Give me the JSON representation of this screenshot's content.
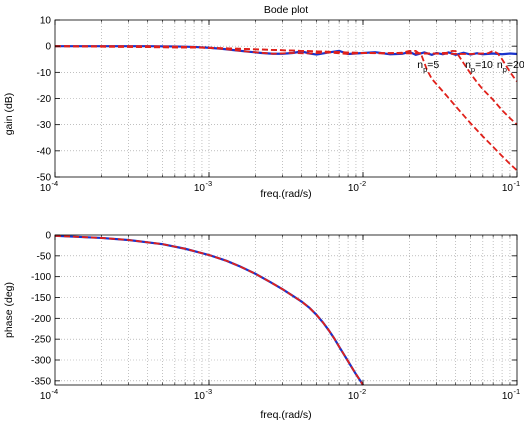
{
  "chart_data": [
    {
      "type": "line",
      "title": "Bode plot",
      "xlabel": "freq.(rad/s)",
      "ylabel": "gain (dB)",
      "xscale": "log",
      "xlim": [
        0.0001,
        0.1
      ],
      "ylim": [
        -50,
        10
      ],
      "grid": "dotted",
      "x_tick_labels": [
        "10",
        "10",
        "10",
        "10"
      ],
      "x_tick_exponents": [
        "-4",
        "-3",
        "-2",
        "-1"
      ],
      "y_ticks": [
        10,
        0,
        -10,
        -20,
        -30,
        -40,
        -50
      ],
      "y_tick_labels": [
        "10",
        "0",
        "-10",
        "-20",
        "-30",
        "-40",
        "-50"
      ],
      "series": [
        {
          "style": "solid",
          "color": "#1a33cc",
          "x": [
            0.0001,
            0.0002,
            0.0004,
            0.0006,
            0.0008,
            0.001,
            0.0012,
            0.0015,
            0.0018,
            0.0022,
            0.0026,
            0.003,
            0.0035,
            0.004,
            0.0045,
            0.005,
            0.006,
            0.007,
            0.008,
            0.01,
            0.012,
            0.015,
            0.018,
            0.02,
            0.022,
            0.025,
            0.028,
            0.03,
            0.033,
            0.036,
            0.04,
            0.045,
            0.05,
            0.055,
            0.06,
            0.07,
            0.08,
            0.09,
            0.1
          ],
          "y": [
            0,
            0,
            0,
            -0.1,
            -0.3,
            -0.6,
            -1.0,
            -1.6,
            -2.1,
            -2.6,
            -2.9,
            -2.9,
            -2.6,
            -2.0,
            -2.8,
            -3.2,
            -2.4,
            -1.8,
            -3.0,
            -2.6,
            -2.3,
            -3.1,
            -2.9,
            -2.2,
            -3.3,
            -2.4,
            -3.3,
            -2.6,
            -3.1,
            -2.4,
            -3.3,
            -2.5,
            -3.2,
            -2.7,
            -3.1,
            -2.8,
            -3.1,
            -2.8,
            -3.0
          ]
        },
        {
          "name": "n_p=5",
          "style": "dashed",
          "color": "#e0201a",
          "x": [
            0.0001,
            0.0004,
            0.0008,
            0.0012,
            0.0018,
            0.0026,
            0.0035,
            0.0045,
            0.006,
            0.008,
            0.01,
            0.014,
            0.018,
            0.02,
            0.022,
            0.024,
            0.026,
            0.028,
            0.03,
            0.035,
            0.04,
            0.05,
            0.06,
            0.07,
            0.08,
            0.09,
            0.1
          ],
          "y": [
            0,
            0,
            -0.3,
            -1.0,
            -2.1,
            -2.9,
            -2.6,
            -2.8,
            -2.4,
            -3.0,
            -2.6,
            -2.8,
            -2.5,
            -1.8,
            -1.8,
            -3.5,
            -9.0,
            -12.5,
            -14.5,
            -19.0,
            -23.0,
            -29.5,
            -34.5,
            -38.5,
            -42.0,
            -45.0,
            -47.5
          ]
        },
        {
          "name": "n_p=10",
          "style": "dashed",
          "color": "#e0201a",
          "x": [
            0.0001,
            0.001,
            0.01,
            0.02,
            0.03,
            0.035,
            0.038,
            0.04,
            0.042,
            0.045,
            0.05,
            0.055,
            0.06,
            0.07,
            0.08,
            0.09,
            0.1
          ],
          "y": [
            0,
            -0.6,
            -2.6,
            -2.6,
            -2.8,
            -2.5,
            -1.8,
            -1.9,
            -3.8,
            -6.5,
            -10.5,
            -13.8,
            -16.5,
            -20.5,
            -24.5,
            -27.5,
            -30.0
          ]
        },
        {
          "name": "n_p=20",
          "style": "dashed",
          "color": "#e0201a",
          "x": [
            0.0001,
            0.001,
            0.01,
            0.05,
            0.065,
            0.07,
            0.075,
            0.08,
            0.085,
            0.09,
            0.095,
            0.1
          ],
          "y": [
            0,
            -0.6,
            -2.6,
            -3.0,
            -2.7,
            -1.8,
            -2.8,
            -5.0,
            -7.5,
            -9.8,
            -11.8,
            -13.5
          ]
        }
      ],
      "annotations": [
        {
          "text": "n",
          "sub": "p",
          "rest": "=5",
          "x": 0.0225,
          "y": -8.3
        },
        {
          "text": "n",
          "sub": "p",
          "rest": "=10",
          "x": 0.046,
          "y": -8.3
        },
        {
          "text": "n",
          "sub": "p",
          "rest": "=20",
          "x": 0.074,
          "y": -8.3
        }
      ]
    },
    {
      "type": "line",
      "xlabel": "freq.(rad/s)",
      "ylabel": "phase (deg)",
      "xscale": "log",
      "xlim": [
        0.0001,
        0.1
      ],
      "ylim": [
        -360,
        0
      ],
      "grid": "dotted",
      "x_tick_labels": [
        "10",
        "10",
        "10",
        "10"
      ],
      "x_tick_exponents": [
        "-4",
        "-3",
        "-2",
        "-1"
      ],
      "y_ticks": [
        0,
        -50,
        -100,
        -150,
        -200,
        -250,
        -300,
        -350
      ],
      "y_tick_labels": [
        "0",
        "-50",
        "-100",
        "-150",
        "-200",
        "-250",
        "-300",
        "-350"
      ],
      "series": [
        {
          "style": "solid",
          "color": "#1a33cc",
          "x": [
            0.0001,
            0.0002,
            0.0003,
            0.0005,
            0.0007,
            0.001,
            0.0013,
            0.0016,
            0.002,
            0.0025,
            0.003,
            0.0035,
            0.004,
            0.0045,
            0.005,
            0.0055,
            0.006,
            0.0065,
            0.007,
            0.0075,
            0.008,
            0.0085,
            0.009,
            0.0095,
            0.01
          ],
          "y": [
            -2,
            -7,
            -12,
            -22,
            -33,
            -48,
            -62,
            -76,
            -93,
            -113,
            -130,
            -146,
            -160,
            -175,
            -192,
            -210,
            -229,
            -248,
            -268,
            -286,
            -303,
            -319,
            -334,
            -347,
            -360
          ]
        },
        {
          "style": "dashed",
          "color": "#e0201a",
          "x": [
            0.0001,
            0.0002,
            0.0003,
            0.0005,
            0.0007,
            0.001,
            0.0013,
            0.0016,
            0.002,
            0.0025,
            0.003,
            0.0035,
            0.004,
            0.0045,
            0.005,
            0.0055,
            0.006,
            0.0065,
            0.007,
            0.0075,
            0.008,
            0.0085,
            0.009,
            0.0095,
            0.01
          ],
          "y": [
            -2,
            -7,
            -12,
            -22,
            -33,
            -48,
            -62,
            -76,
            -93,
            -113,
            -130,
            -146,
            -160,
            -175,
            -192,
            -210,
            -229,
            -248,
            -268,
            -286,
            -303,
            -319,
            -334,
            -347,
            -360
          ]
        }
      ]
    }
  ]
}
